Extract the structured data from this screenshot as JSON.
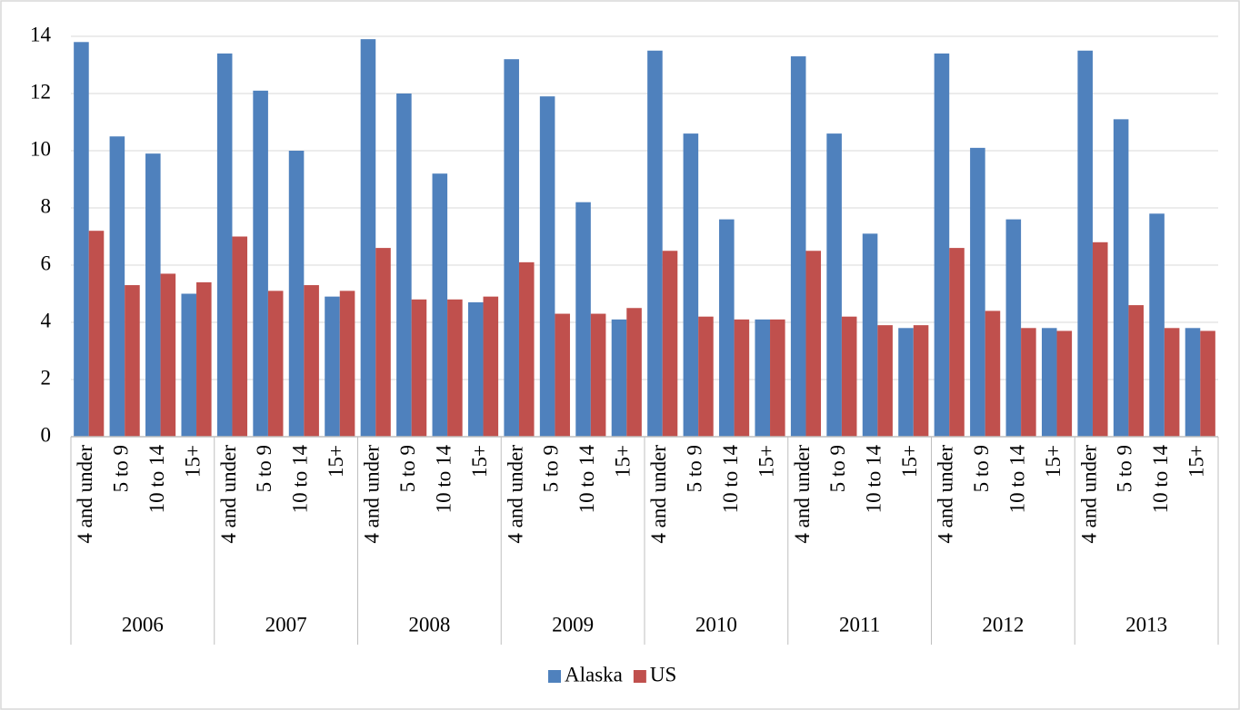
{
  "chart_data": {
    "type": "bar",
    "group_labels": [
      "2006",
      "2007",
      "2008",
      "2009",
      "2010",
      "2011",
      "2012",
      "2013"
    ],
    "categories": [
      "4 and under",
      "5 to 9",
      "10 to 14",
      "15+",
      "4 and under",
      "5 to 9",
      "10 to 14",
      "15+",
      "4 and under",
      "5 to 9",
      "10 to 14",
      "15+",
      "4 and under",
      "5 to 9",
      "10 to 14",
      "15+",
      "4 and under",
      "5 to 9",
      "10 to 14",
      "15+",
      "4 and under",
      "5 to 9",
      "10 to 14",
      "15+",
      "4 and under",
      "5 to 9",
      "10 to 14",
      "15+",
      "4 and under",
      "5 to 9",
      "10 to 14",
      "15+"
    ],
    "series": [
      {
        "name": "Alaska",
        "color": "#4f81bd",
        "values": [
          13.8,
          10.5,
          9.9,
          5.0,
          13.4,
          12.1,
          10.0,
          4.9,
          13.9,
          12.0,
          9.2,
          4.7,
          13.2,
          11.9,
          8.2,
          4.1,
          13.5,
          10.6,
          7.6,
          4.1,
          13.3,
          10.6,
          7.1,
          3.8,
          13.4,
          10.1,
          7.6,
          3.8,
          13.5,
          11.1,
          7.8,
          3.8
        ]
      },
      {
        "name": "US",
        "color": "#c0504d",
        "values": [
          7.2,
          5.3,
          5.7,
          5.4,
          7.0,
          5.1,
          5.3,
          5.1,
          6.6,
          4.8,
          4.8,
          4.9,
          6.1,
          4.3,
          4.3,
          4.5,
          6.5,
          4.2,
          4.1,
          4.1,
          6.5,
          4.2,
          3.9,
          3.9,
          6.6,
          4.4,
          3.8,
          3.7,
          6.8,
          4.6,
          3.8,
          3.7
        ]
      }
    ],
    "ylim": [
      0,
      14
    ],
    "yticks": [
      0,
      2,
      4,
      6,
      8,
      10,
      12,
      14
    ],
    "grid": true,
    "legend": "bottom"
  }
}
